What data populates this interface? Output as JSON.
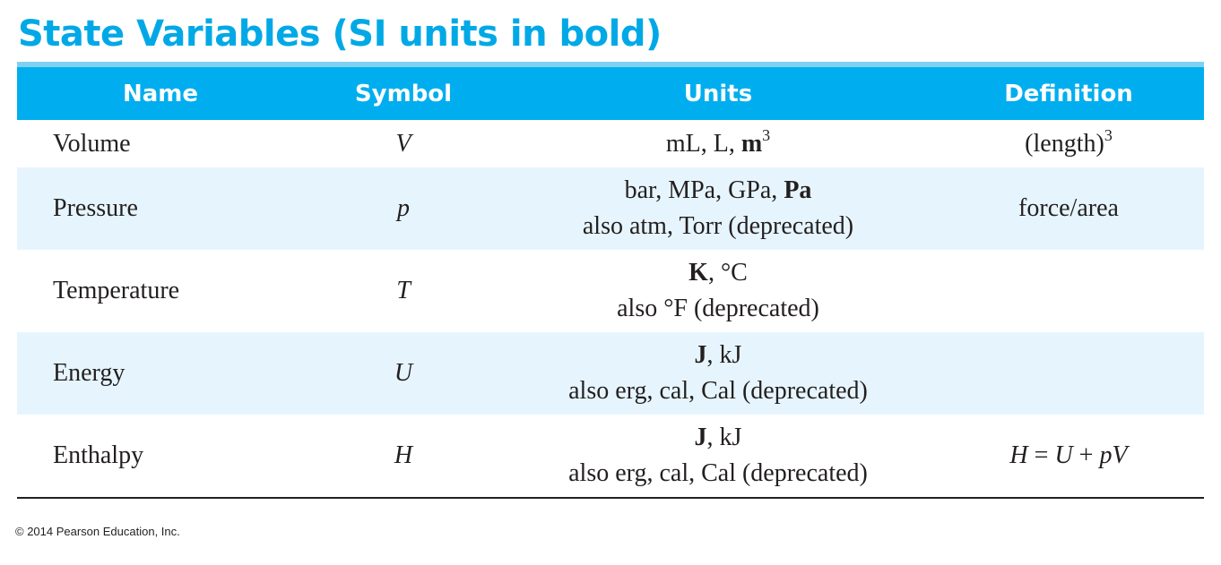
{
  "title": "State Variables (SI units in bold)",
  "headers": [
    "Name",
    "Symbol",
    "Units",
    "Definition"
  ],
  "rows": [
    {
      "name": "Volume",
      "symbol": "V",
      "units": {
        "a": "mL, L, ",
        "b": "m",
        "sup": "3"
      },
      "definition": {
        "text": "(length)",
        "sup": "3"
      }
    },
    {
      "name": "Pressure",
      "symbol": "p",
      "units": {
        "a": "bar, MPa, GPa, ",
        "b": "Pa",
        "line2": "also atm, Torr (deprecated)"
      },
      "definition": {
        "text": "force/area"
      }
    },
    {
      "name": "Temperature",
      "symbol": "T",
      "units": {
        "b": "K",
        "a": ", °C",
        "line2": "also °F (deprecated)"
      },
      "definition": {
        "text": ""
      }
    },
    {
      "name": "Energy",
      "symbol": "U",
      "units": {
        "b": "J",
        "a": ", kJ",
        "line2": "also erg, cal, Cal (deprecated)"
      },
      "definition": {
        "text": ""
      }
    },
    {
      "name": "Enthalpy",
      "symbol": "H",
      "units": {
        "b": "J",
        "a": ", kJ",
        "line2": "also erg, cal, Cal (deprecated)"
      },
      "definition": {
        "lhs": "H",
        "eq": " = ",
        "u": "U",
        "plus": " + ",
        "pv": "pV"
      }
    }
  ],
  "colors": {
    "accent": "#00aeef",
    "title": "#00a9e6",
    "shade": "#e6f5fd"
  },
  "footer": "© 2014 Pearson Education, Inc."
}
